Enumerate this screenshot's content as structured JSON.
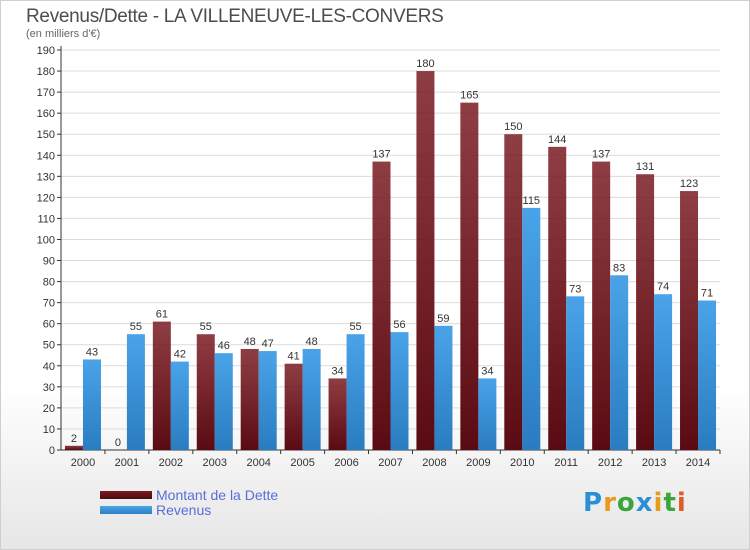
{
  "header": {
    "title": "Revenus/Dette - LA VILLENEUVE-LES-CONVERS",
    "subtitle": "(en milliers d'€)"
  },
  "logo_text": "Proxiti",
  "colors": {
    "dette": "#7a1c22",
    "revenus": "#4aa3e8",
    "axis": "#333333",
    "grid": "#dcdcdc"
  },
  "chart_data": {
    "type": "bar",
    "title": "Revenus/Dette - LA VILLENEUVE-LES-CONVERS",
    "subtitle": "(en milliers d'€)",
    "categories": [
      "2000",
      "2001",
      "2002",
      "2003",
      "2004",
      "2005",
      "2006",
      "2007",
      "2008",
      "2009",
      "2010",
      "2011",
      "2012",
      "2013",
      "2014"
    ],
    "series": [
      {
        "name": "Montant de la Dette",
        "values": [
          2,
          0,
          61,
          55,
          48,
          41,
          34,
          137,
          180,
          165,
          150,
          144,
          137,
          131,
          123
        ]
      },
      {
        "name": "Revenus",
        "values": [
          43,
          55,
          42,
          46,
          47,
          48,
          55,
          56,
          59,
          34,
          115,
          73,
          83,
          74,
          71
        ]
      }
    ],
    "ylim": [
      0,
      190
    ],
    "yticks": [
      0,
      10,
      20,
      30,
      40,
      50,
      60,
      70,
      80,
      90,
      100,
      110,
      120,
      130,
      140,
      150,
      160,
      170,
      180,
      190
    ],
    "legend_position": "bottom-left",
    "data_labels": true
  }
}
